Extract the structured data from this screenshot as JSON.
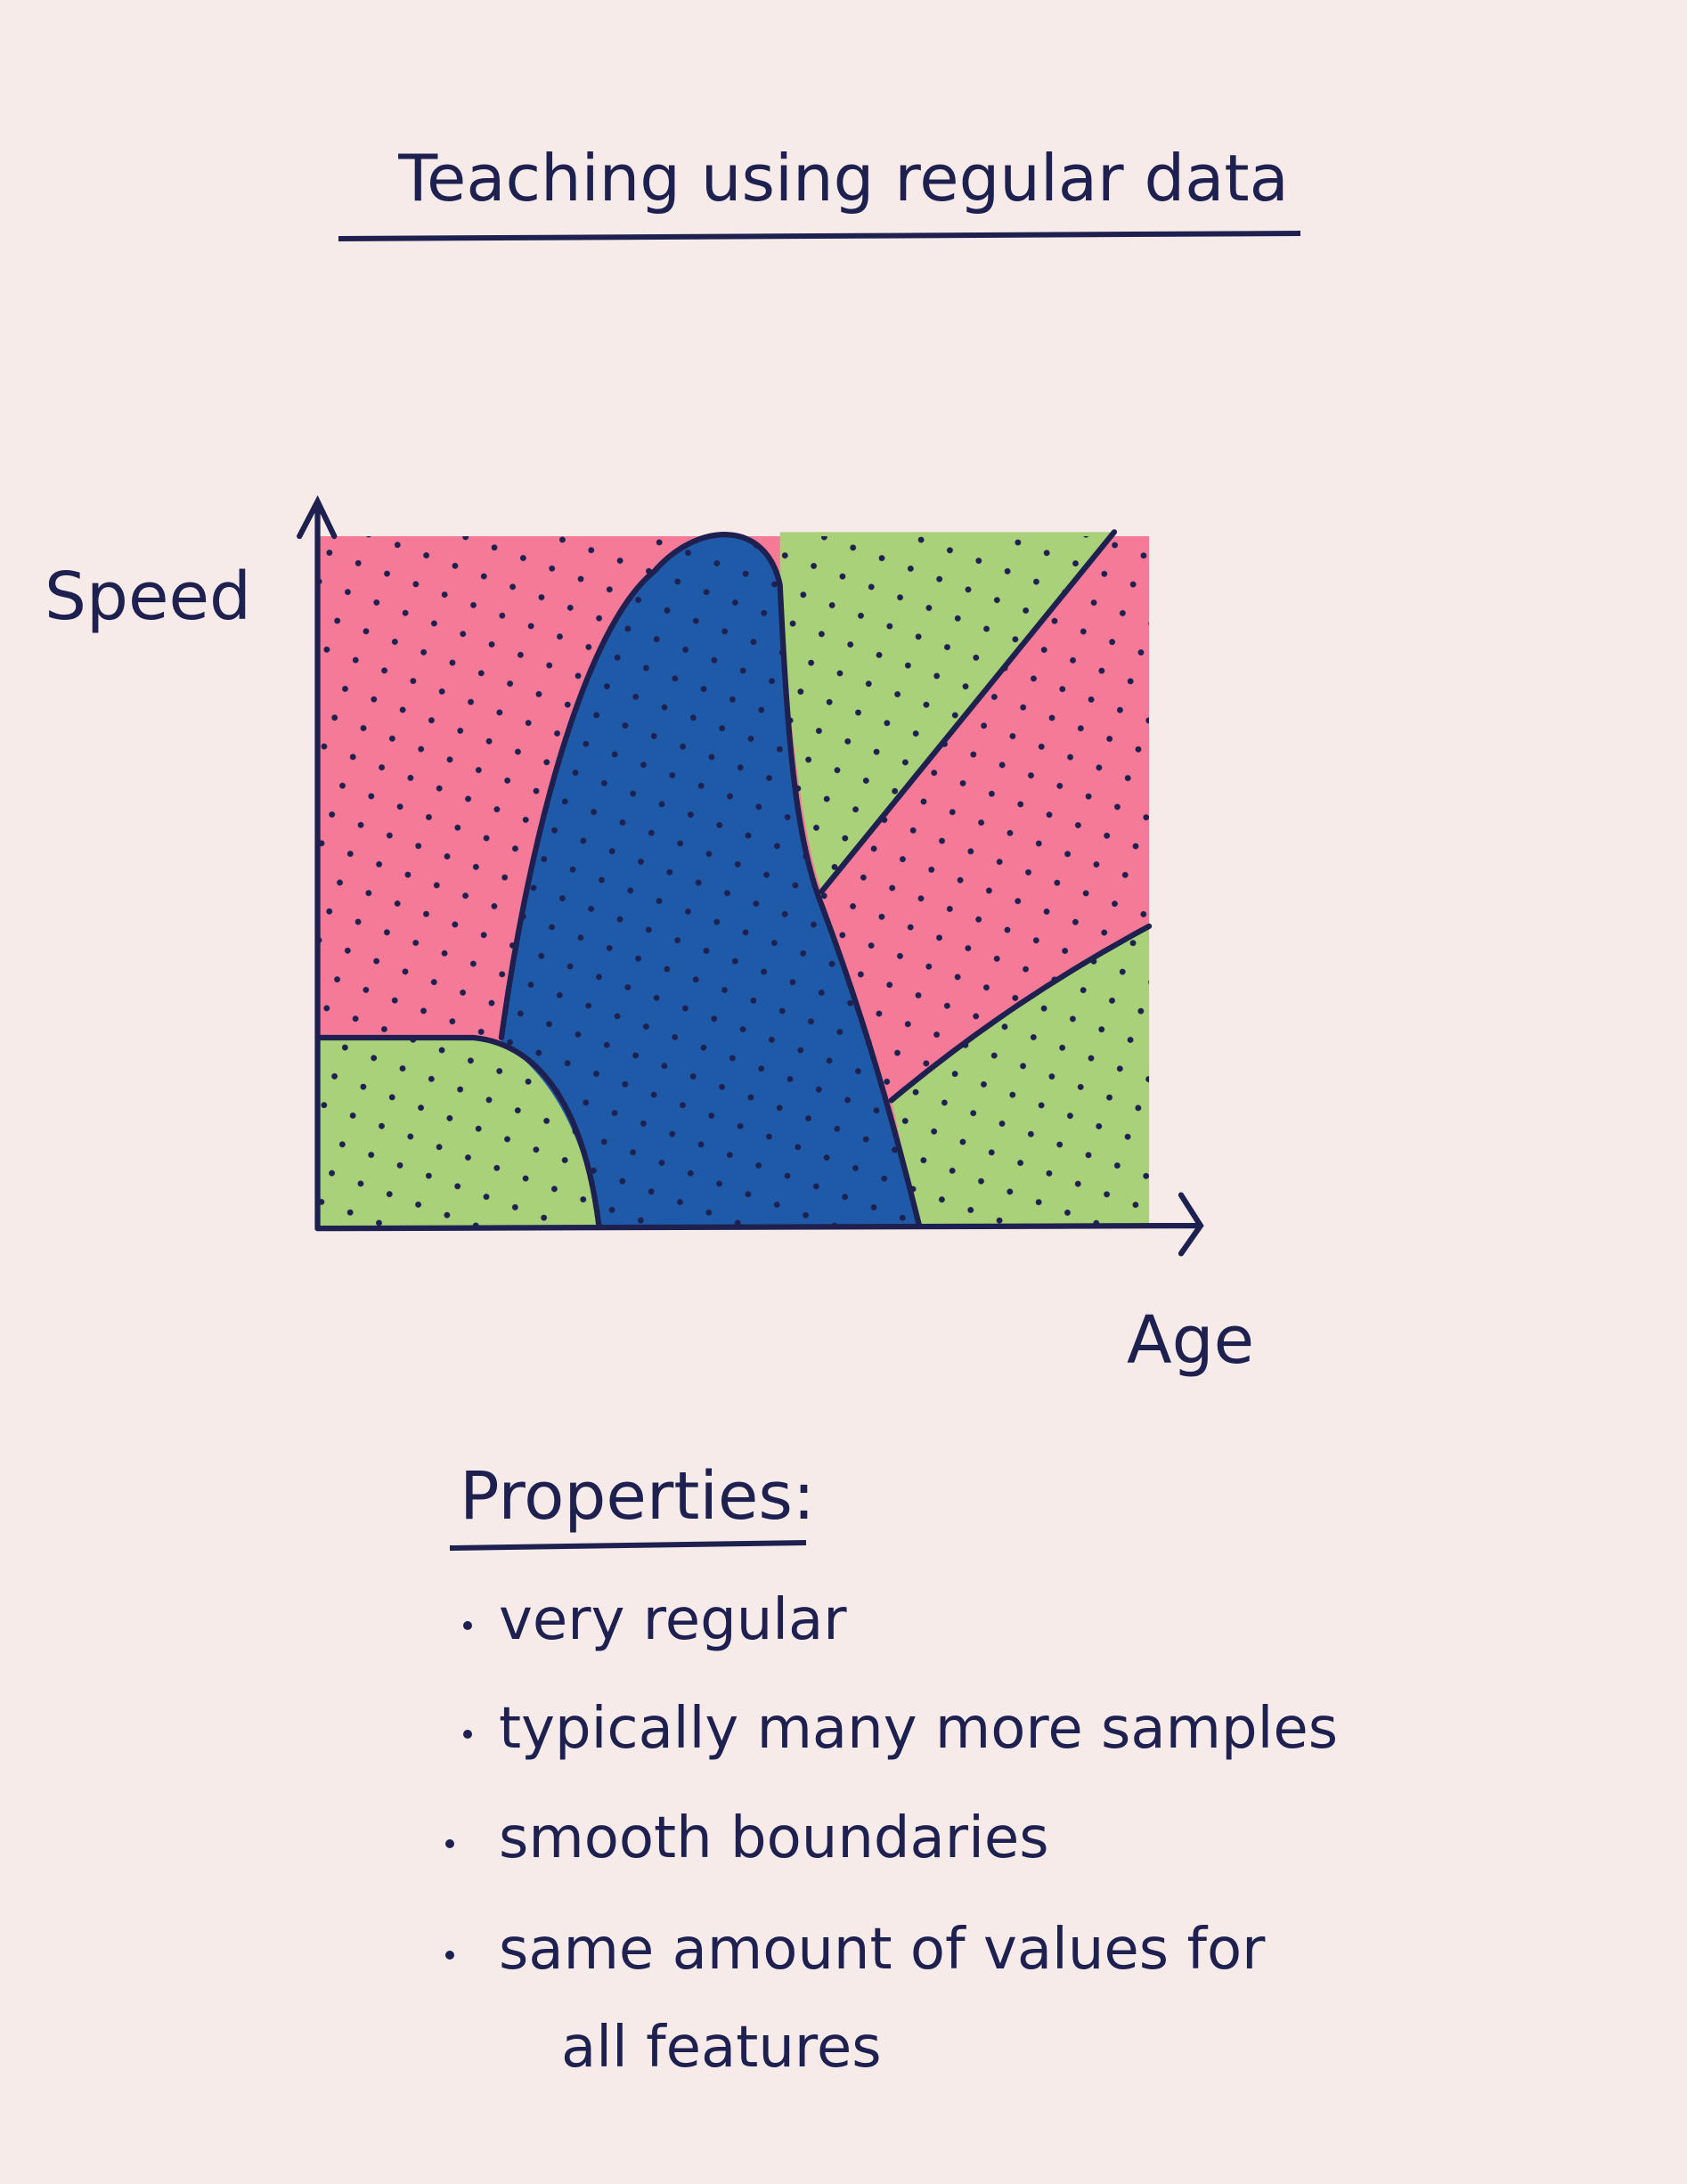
{
  "title": "Teaching using regular data",
  "axes": {
    "y_label": "Speed",
    "x_label": "Age"
  },
  "properties": {
    "heading": "Properties:",
    "items": [
      "very regular",
      "typically many more samples",
      "smooth boundaries",
      "same amount of values for",
      "all features"
    ]
  }
}
